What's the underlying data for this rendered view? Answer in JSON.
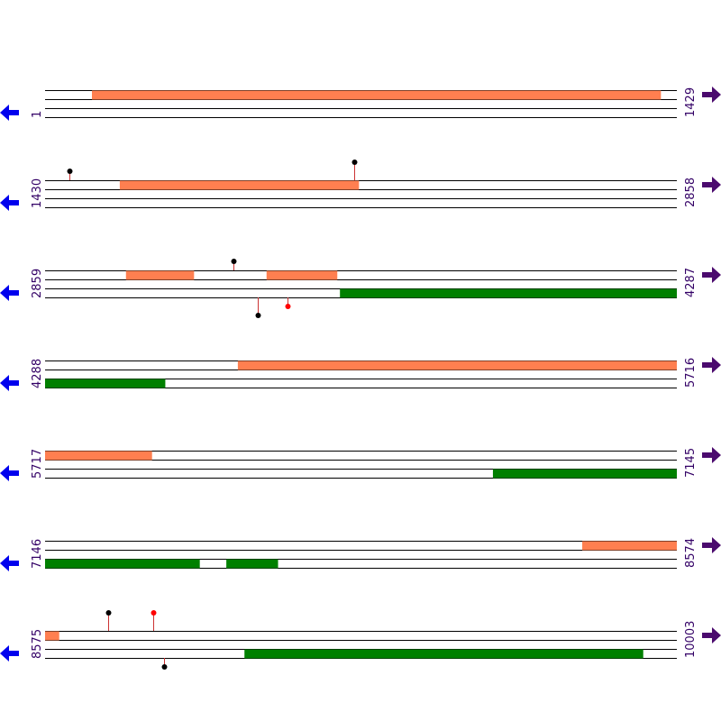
{
  "rows": [
    {
      "start": "1",
      "end": "1429",
      "features": [
        {
          "strand": "forward",
          "from": 107,
          "to": 1393
        }
      ],
      "markers": []
    },
    {
      "start": "1430",
      "end": "2858",
      "features": [
        {
          "strand": "forward",
          "from": 1599,
          "to": 2139
        }
      ],
      "markers": [
        {
          "pos": 1485,
          "strand": "forward",
          "color": "#000000"
        },
        {
          "pos": 2129,
          "strand": "forward",
          "color": "#000000"
        }
      ]
    },
    {
      "start": "2859",
      "end": "4287",
      "features": [
        {
          "strand": "forward",
          "from": 3042,
          "to": 3195
        },
        {
          "strand": "forward",
          "from": 3360,
          "to": 3519
        },
        {
          "strand": "reverse",
          "from": 3526,
          "to": 4287
        }
      ],
      "markers": [
        {
          "pos": 3285,
          "strand": "forward",
          "color": "#000000"
        },
        {
          "pos": 3340,
          "strand": "reverse",
          "color": "#000000"
        },
        {
          "pos": 3407,
          "strand": "reverse",
          "color": "#ff0000"
        }
      ]
    },
    {
      "start": "4288",
      "end": "5716",
      "features": [
        {
          "strand": "forward",
          "from": 4724,
          "to": 5716
        },
        {
          "strand": "reverse",
          "from": 4288,
          "to": 4559
        }
      ],
      "markers": []
    },
    {
      "start": "5717",
      "end": "7145",
      "features": [
        {
          "strand": "forward",
          "from": 5717,
          "to": 5958
        },
        {
          "strand": "reverse",
          "from": 6730,
          "to": 7145
        }
      ],
      "markers": []
    },
    {
      "start": "7146",
      "end": "8574",
      "features": [
        {
          "strand": "forward",
          "from": 8361,
          "to": 8574
        },
        {
          "strand": "reverse",
          "from": 7146,
          "to": 7495
        },
        {
          "strand": "reverse",
          "from": 7556,
          "to": 7672
        }
      ],
      "markers": []
    },
    {
      "start": "8575",
      "end": "10003",
      "features": [
        {
          "strand": "forward",
          "from": 8575,
          "to": 8606
        },
        {
          "strand": "reverse",
          "from": 9026,
          "to": 9927
        }
      ],
      "markers": [
        {
          "pos": 8718,
          "strand": "forward",
          "color": "#000000"
        },
        {
          "pos": 8820,
          "strand": "forward",
          "color": "#ff0000"
        },
        {
          "pos": 8844,
          "strand": "reverse",
          "color": "#000000"
        }
      ]
    }
  ]
}
